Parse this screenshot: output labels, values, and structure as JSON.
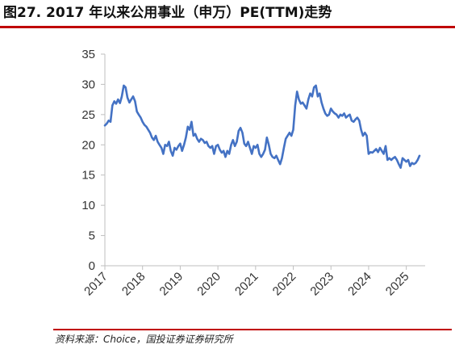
{
  "title": "图27. 2017 年以来公用事业（申万）PE(TTM)走势",
  "source": "资料来源：Choice，国投证券证券研究所",
  "colors": {
    "line": "#4472c4",
    "accent": "#c00000",
    "axis": "#bfbfbf"
  },
  "chart_data": {
    "type": "line",
    "title": "",
    "xlabel": "",
    "ylabel": "",
    "ylim": [
      0,
      35
    ],
    "yticks": [
      0,
      5,
      10,
      15,
      20,
      25,
      30,
      35
    ],
    "xlim": [
      2017.0,
      2025.5
    ],
    "xticks": [
      "2017",
      "2018",
      "2019",
      "2020",
      "2021",
      "2022",
      "2023",
      "2024",
      "2025"
    ],
    "grid": false,
    "legend": "none",
    "series": [
      {
        "x": [
          2017.0,
          2017.05,
          2017.1,
          2017.15,
          2017.2,
          2017.25,
          2017.3,
          2017.35,
          2017.4,
          2017.45,
          2017.5,
          2017.55,
          2017.6,
          2017.65,
          2017.7,
          2017.75,
          2017.8,
          2017.85,
          2017.9,
          2017.95,
          2018.0,
          2018.05,
          2018.1,
          2018.15,
          2018.2,
          2018.25,
          2018.3,
          2018.35,
          2018.4,
          2018.45,
          2018.5,
          2018.55,
          2018.6,
          2018.65,
          2018.7,
          2018.75,
          2018.8,
          2018.85,
          2018.9,
          2018.95,
          2019.0,
          2019.05,
          2019.1,
          2019.15,
          2019.2,
          2019.25,
          2019.3,
          2019.35,
          2019.4,
          2019.45,
          2019.5,
          2019.55,
          2019.6,
          2019.65,
          2019.7,
          2019.75,
          2019.8,
          2019.85,
          2019.9,
          2019.95,
          2020.0,
          2020.05,
          2020.1,
          2020.15,
          2020.2,
          2020.25,
          2020.3,
          2020.35,
          2020.4,
          2020.45,
          2020.5,
          2020.55,
          2020.6,
          2020.65,
          2020.7,
          2020.75,
          2020.8,
          2020.85,
          2020.9,
          2020.95,
          2021.0,
          2021.05,
          2021.1,
          2021.15,
          2021.2,
          2021.25,
          2021.3,
          2021.35,
          2021.4,
          2021.45,
          2021.5,
          2021.55,
          2021.6,
          2021.65,
          2021.7,
          2021.75,
          2021.8,
          2021.85,
          2021.9,
          2021.95,
          2022.0,
          2022.05,
          2022.1,
          2022.15,
          2022.2,
          2022.25,
          2022.3,
          2022.35,
          2022.4,
          2022.45,
          2022.5,
          2022.55,
          2022.6,
          2022.65,
          2022.7,
          2022.75,
          2022.8,
          2022.85,
          2022.9,
          2022.95,
          2023.0,
          2023.05,
          2023.1,
          2023.15,
          2023.2,
          2023.25,
          2023.3,
          2023.35,
          2023.4,
          2023.45,
          2023.5,
          2023.55,
          2023.6,
          2023.65,
          2023.7,
          2023.75,
          2023.8,
          2023.85,
          2023.9,
          2023.95,
          2024.0,
          2024.05,
          2024.1,
          2024.15,
          2024.2,
          2024.25,
          2024.3,
          2024.35,
          2024.4,
          2024.45,
          2024.5,
          2024.55,
          2024.6,
          2024.65,
          2024.7,
          2024.75,
          2024.8,
          2024.85,
          2024.9,
          2024.95,
          2025.0,
          2025.05,
          2025.1,
          2025.15,
          2025.2,
          2025.25,
          2025.3,
          2025.35
        ],
        "values": [
          23.2,
          23.5,
          24.0,
          23.8,
          26.5,
          27.2,
          26.8,
          27.5,
          26.9,
          28.0,
          29.8,
          29.5,
          27.8,
          27.0,
          27.5,
          28.0,
          27.2,
          25.5,
          25.0,
          24.5,
          23.8,
          23.3,
          23.0,
          22.5,
          22.0,
          21.2,
          20.8,
          21.5,
          20.5,
          20.0,
          19.5,
          18.5,
          20.0,
          19.8,
          20.5,
          19.0,
          18.2,
          19.5,
          19.2,
          19.8,
          20.2,
          19.0,
          20.0,
          21.2,
          23.0,
          22.5,
          23.8,
          21.5,
          21.8,
          21.0,
          20.5,
          21.0,
          20.8,
          20.3,
          20.5,
          19.8,
          19.5,
          19.8,
          18.5,
          19.8,
          20.0,
          19.2,
          18.7,
          19.0,
          18.0,
          19.0,
          18.5,
          20.0,
          20.8,
          19.8,
          20.5,
          22.3,
          22.8,
          22.0,
          20.2,
          19.8,
          20.5,
          19.5,
          18.5,
          19.8,
          19.5,
          20.0,
          18.5,
          18.0,
          18.5,
          19.2,
          21.2,
          20.0,
          18.5,
          18.0,
          17.8,
          18.2,
          17.5,
          16.8,
          17.8,
          19.5,
          21.0,
          21.5,
          22.0,
          21.5,
          22.5,
          26.5,
          28.8,
          27.5,
          26.8,
          27.0,
          26.5,
          26.0,
          27.5,
          28.5,
          28.0,
          29.5,
          29.8,
          28.0,
          28.5,
          27.0,
          26.0,
          25.2,
          24.8,
          25.0,
          26.0,
          25.5,
          25.2,
          25.0,
          24.5,
          25.0,
          24.8,
          25.2,
          24.5,
          24.8,
          25.0,
          24.0,
          23.8,
          24.2,
          24.5,
          24.0,
          22.5,
          21.5,
          22.0,
          21.5,
          18.5,
          18.8,
          18.7,
          19.0,
          19.3,
          18.8,
          19.5,
          19.0,
          18.5,
          19.8,
          17.5,
          17.8,
          17.5,
          17.8,
          18.0,
          17.5,
          16.8,
          16.2,
          17.8,
          17.5,
          17.2,
          17.5,
          16.5,
          17.0,
          16.8,
          17.0,
          17.5,
          18.2
        ]
      }
    ]
  }
}
